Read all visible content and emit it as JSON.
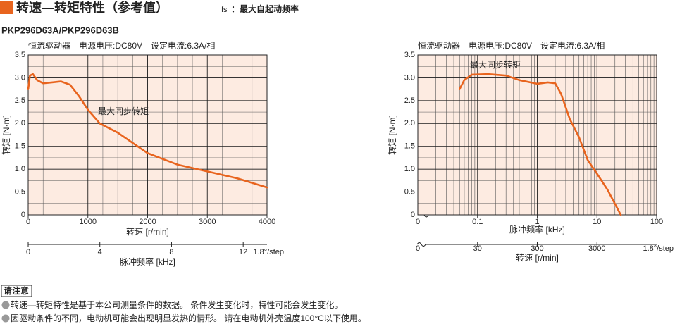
{
  "header": {
    "title": "转速—转矩特性（参考值）",
    "fs_symbol": "fs",
    "fs_note": "：最大自起动频率",
    "model": "PKP296D63A/PKP296D63B"
  },
  "chart_data": [
    {
      "type": "line",
      "subtitle": "恒流驱动器　电源电压:DC80V　设定电流:6.3A/相",
      "annotation": "最大同步转矩",
      "xlabel": "转速 [r/min]",
      "ylabel": "转矩 [N·m]",
      "color": "#e8641e",
      "grid": true,
      "x": [
        0,
        30,
        80,
        150,
        250,
        400,
        550,
        700,
        850,
        1000,
        1200,
        1500,
        2000,
        2500,
        3000,
        3500,
        4000
      ],
      "values": [
        2.75,
        3.05,
        3.08,
        2.95,
        2.88,
        2.9,
        2.92,
        2.85,
        2.6,
        2.3,
        2.0,
        1.8,
        1.35,
        1.1,
        0.95,
        0.8,
        0.6
      ],
      "xlim": [
        0,
        4000
      ],
      "xticks": [
        0,
        1000,
        2000,
        3000,
        4000
      ],
      "x_minor_step": 250,
      "ylim": [
        0,
        3.5
      ],
      "yticks": [
        0,
        0.5,
        {
          "value": 1,
          "label": "1.0"
        },
        1.5,
        {
          "value": 2,
          "label": "2.0"
        },
        2.5,
        {
          "value": 3,
          "label": "3.0"
        },
        3.5
      ],
      "y_minor_step": 0.25,
      "secondary_x": {
        "label": "脉冲频率 [kHz]",
        "xlim": [
          0,
          13.33
        ],
        "xticks": [
          0,
          4,
          8,
          12
        ],
        "step_label": "1.8°/step"
      }
    },
    {
      "type": "line",
      "subtitle": "恒流驱动器　电源电压:DC80V　设定电流:6.3A/相",
      "annotation": "最大同步转矩",
      "xlabel": "脉冲频率 [kHz]",
      "ylabel": "转矩 [N·m]",
      "color": "#e8641e",
      "grid": true,
      "log_x": true,
      "x": [
        0.05,
        0.06,
        0.08,
        0.15,
        0.3,
        0.5,
        1,
        1.5,
        2,
        2.5,
        3.5,
        5,
        7,
        10,
        15,
        25
      ],
      "values": [
        2.75,
        2.95,
        3.07,
        3.08,
        3.05,
        2.95,
        2.87,
        2.9,
        2.88,
        2.65,
        2.1,
        1.7,
        1.2,
        0.9,
        0.55,
        0
      ],
      "xlim": [
        0.01,
        100
      ],
      "xticks": [
        0.1,
        1,
        10,
        100
      ],
      "x_origin_label": "0",
      "ylim": [
        0,
        3.5
      ],
      "yticks": [
        0,
        0.5,
        {
          "value": 1,
          "label": "1.0"
        },
        1.5,
        {
          "value": 2,
          "label": "2.0"
        },
        2.5,
        {
          "value": 3,
          "label": "3.0"
        },
        3.5
      ],
      "y_minor_step": 0.25,
      "secondary_x": {
        "label": "转速 [r/min]",
        "xlim": [
          3,
          30000
        ],
        "xticks": [
          30,
          300,
          3000
        ],
        "origin_label": "0",
        "step_label": "1.8°/step"
      }
    }
  ],
  "notes": {
    "heading": "请注意",
    "items": [
      "转速—转矩特性是基于本公司测量条件的数据。 条件发生变化时，特性可能会发生变化。",
      "因驱动条件的不同，电动机可能会出现明显发热的情形。 请在电动机外壳温度100°C以下使用。"
    ]
  }
}
